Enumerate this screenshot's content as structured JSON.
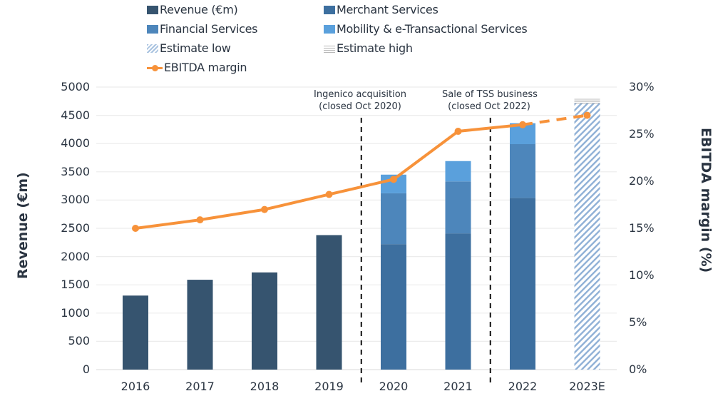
{
  "chart_data": {
    "type": "bar",
    "subtype": "stacked bar with secondary-axis line",
    "title": "",
    "categories": [
      "2016",
      "2017",
      "2018",
      "2019",
      "2020",
      "2021",
      "2022",
      "2023E"
    ],
    "series": [
      {
        "name": "Revenue (€m)",
        "kind": "bar",
        "axis": "left",
        "color": "#36546f",
        "values": [
          1310,
          1590,
          1720,
          2380,
          null,
          null,
          null,
          null
        ]
      },
      {
        "name": "Merchant Services",
        "kind": "stacked-bar",
        "axis": "left",
        "color": "#3d6f9f",
        "values": [
          null,
          null,
          null,
          null,
          2220,
          2410,
          3040,
          null
        ]
      },
      {
        "name": "Financial Services",
        "kind": "stacked-bar",
        "axis": "left",
        "color": "#4d86bb",
        "values": [
          null,
          null,
          null,
          null,
          900,
          920,
          950,
          null
        ]
      },
      {
        "name": "Mobility & e-Transactional Services",
        "kind": "stacked-bar",
        "axis": "left",
        "color": "#5aa0dc",
        "values": [
          null,
          null,
          null,
          null,
          330,
          360,
          370,
          null
        ]
      },
      {
        "name": "Estimate low",
        "kind": "hatched-bar",
        "axis": "left",
        "color": "#a9c3e0",
        "values": [
          null,
          null,
          null,
          null,
          null,
          null,
          null,
          4710
        ]
      },
      {
        "name": "Estimate high",
        "kind": "striped-bar",
        "axis": "left",
        "color": "#b8b8b8",
        "values": [
          null,
          null,
          null,
          null,
          null,
          null,
          null,
          80
        ]
      },
      {
        "name": "EBITDA margin",
        "kind": "line",
        "axis": "right",
        "color": "#f7923a",
        "values": [
          15.0,
          15.9,
          17.0,
          18.6,
          20.2,
          25.3,
          26.0,
          27.0
        ],
        "dashed_from": "2022"
      }
    ],
    "xlabel": "",
    "ylabel": "Revenue (€m)",
    "ylabel_right": "EBITDA margin (%)",
    "ylim": [
      0,
      5000
    ],
    "yticks": [
      "0",
      "500",
      "1000",
      "1500",
      "2000",
      "2500",
      "3000",
      "3500",
      "4000",
      "4500",
      "5000"
    ],
    "ylim_right": [
      0,
      30
    ],
    "yticks_right": [
      "0%",
      "5%",
      "10%",
      "15%",
      "20%",
      "25%",
      "30%"
    ],
    "grid": true,
    "legend_position": "top",
    "annotations": [
      {
        "after_category": "2019",
        "lines": [
          "Ingenico acquisition",
          "(closed Oct 2020)"
        ]
      },
      {
        "after_category": "2021",
        "lines": [
          "Sale of TSS business",
          "(closed Oct 2022)"
        ]
      }
    ]
  },
  "legend": [
    {
      "label": "Revenue (€m)",
      "swatch": "solid",
      "color": "#36546f"
    },
    {
      "label": "Merchant Services",
      "swatch": "solid",
      "color": "#3d6f9f"
    },
    {
      "label": "Financial Services",
      "swatch": "solid",
      "color": "#4d86bb"
    },
    {
      "label": "Mobility & e-Transactional Services",
      "swatch": "solid",
      "color": "#5aa0dc"
    },
    {
      "label": "Estimate low",
      "swatch": "hatch",
      "color": "#a9c3e0"
    },
    {
      "label": "Estimate high",
      "swatch": "lines",
      "color": "#b8b8b8"
    },
    {
      "label": "EBITDA margin",
      "swatch": "line",
      "color": "#f7923a"
    }
  ]
}
